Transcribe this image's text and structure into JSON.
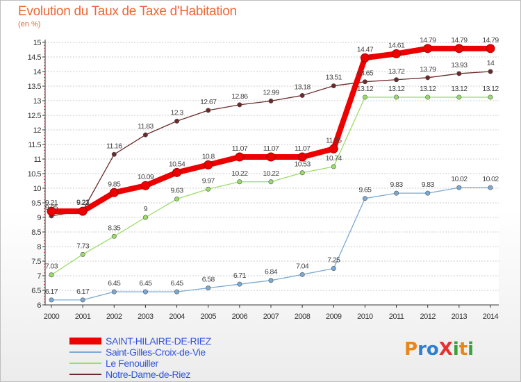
{
  "title": "Evolution du Taux de Taxe d'Habitation",
  "unit": "(en %)",
  "logo": {
    "text": "ProXiti"
  },
  "colors": {
    "title": "#ee6633",
    "legend_text": "#3355dd",
    "grid": "#cccccc",
    "axis": "#333333"
  },
  "chart_data": {
    "type": "line",
    "x": [
      "2000",
      "2001",
      "2002",
      "2003",
      "2004",
      "2005",
      "2006",
      "2007",
      "2008",
      "2009",
      "2010",
      "2011",
      "2012",
      "2013",
      "2014"
    ],
    "ylim": [
      6,
      15
    ],
    "y_ticks": [
      6,
      6.5,
      7,
      7.5,
      8,
      8.5,
      9,
      9.5,
      10,
      10.5,
      11,
      11.5,
      12,
      12.5,
      13,
      13.5,
      14,
      14.5,
      15
    ],
    "grid": "horizontal",
    "legend_position": "bottom-left",
    "series": [
      {
        "name": "SAINT-HILAIRE-DE-RIEZ",
        "color": "#ee0000",
        "values": [
          9.21,
          9.21,
          9.85,
          10.09,
          10.54,
          10.8,
          11.07,
          11.07,
          11.07,
          11.35,
          14.47,
          14.61,
          14.79,
          14.79,
          14.79
        ],
        "labels": [
          "9.21",
          "9.21",
          "9.85",
          "10.09",
          "10.54",
          "10.8",
          "11.07",
          "11.07",
          "11.07",
          "11.35",
          "14.47",
          "14.61",
          "14.79",
          "14.79",
          "14.79"
        ]
      },
      {
        "name": "Saint-Gilles-Croix-de-Vie",
        "color": "#7aaad4",
        "values": [
          6.17,
          6.17,
          6.45,
          6.45,
          6.45,
          6.58,
          6.71,
          6.84,
          7.04,
          7.25,
          9.65,
          9.83,
          9.83,
          10.02,
          10.02
        ],
        "labels": [
          "6.17",
          "6.17",
          "6.45",
          "6.45",
          "6.45",
          "6.58",
          "6.71",
          "6.84",
          "7.04",
          "7.25",
          "9.65",
          "9.83",
          "9.83",
          "10.02",
          "10.02"
        ]
      },
      {
        "name": "Le Fenouiller",
        "color": "#99dd66",
        "values": [
          7.03,
          7.73,
          8.35,
          9,
          9.63,
          9.97,
          10.22,
          10.22,
          10.53,
          10.74,
          13.12,
          13.12,
          13.12,
          13.12,
          13.12
        ],
        "labels": [
          "7.03",
          "7.73",
          "8.35",
          "9",
          "9.63",
          "9.97",
          "10.22",
          "10.22",
          "10.53",
          "10.74",
          "13.12",
          "13.12",
          "13.12",
          "13.12",
          "13.12"
        ]
      },
      {
        "name": "Notre-Dame-de-Riez",
        "color": "#6b2a2a",
        "values": [
          9.05,
          9.23,
          11.16,
          11.83,
          12.3,
          12.67,
          12.86,
          12.99,
          13.18,
          13.51,
          13.65,
          13.72,
          13.79,
          13.93,
          14
        ],
        "labels": [
          "9.05",
          "9.23",
          "11.16",
          "11.83",
          "12.3",
          "12.67",
          "12.86",
          "12.99",
          "13.18",
          "13.51",
          "13.65",
          "13.72",
          "13.79",
          "13.93",
          "14"
        ]
      }
    ]
  }
}
